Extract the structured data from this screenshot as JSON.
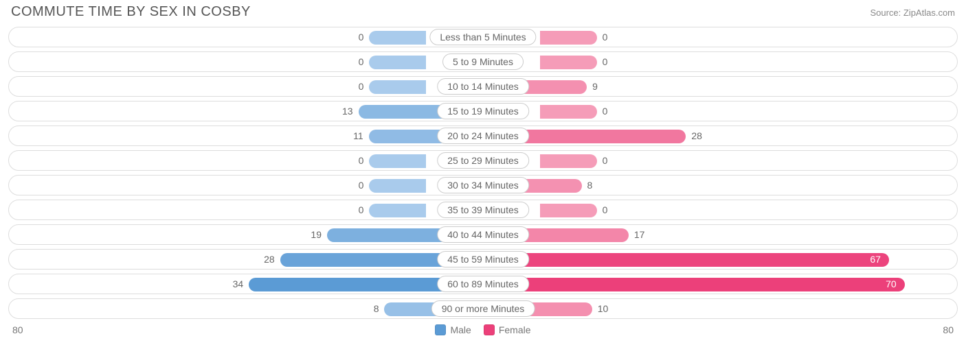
{
  "chart": {
    "type": "diverging-bar",
    "title": "COMMUTE TIME BY SEX IN COSBY",
    "source": "Source: ZipAtlas.com",
    "axis_max": 80,
    "axis_label_left": "80",
    "axis_label_right": "80",
    "center_label_half_width_pct": 6.0,
    "zero_bar_width_pct": 6.0,
    "track_border": "#dddddd",
    "track_bg": "#ffffff",
    "label_pill_border": "#cccccc",
    "text_color": "#666666",
    "background_color": "#ffffff",
    "title_fontsize": 20,
    "label_fontsize": 14,
    "series": {
      "male": {
        "label": "Male",
        "color_solid": "#5b9bd5",
        "color_light": "#a9cbec"
      },
      "female": {
        "label": "Female",
        "color_solid": "#ec407a",
        "color_light": "#f59cb8"
      }
    },
    "rows": [
      {
        "label": "Less than 5 Minutes",
        "male": 0,
        "female": 0
      },
      {
        "label": "5 to 9 Minutes",
        "male": 0,
        "female": 0
      },
      {
        "label": "10 to 14 Minutes",
        "male": 0,
        "female": 9
      },
      {
        "label": "15 to 19 Minutes",
        "male": 13,
        "female": 0
      },
      {
        "label": "20 to 24 Minutes",
        "male": 11,
        "female": 28
      },
      {
        "label": "25 to 29 Minutes",
        "male": 0,
        "female": 0
      },
      {
        "label": "30 to 34 Minutes",
        "male": 0,
        "female": 8
      },
      {
        "label": "35 to 39 Minutes",
        "male": 0,
        "female": 0
      },
      {
        "label": "40 to 44 Minutes",
        "male": 19,
        "female": 17
      },
      {
        "label": "45 to 59 Minutes",
        "male": 28,
        "female": 67
      },
      {
        "label": "60 to 89 Minutes",
        "male": 34,
        "female": 70
      },
      {
        "label": "90 or more Minutes",
        "male": 8,
        "female": 10
      }
    ]
  }
}
